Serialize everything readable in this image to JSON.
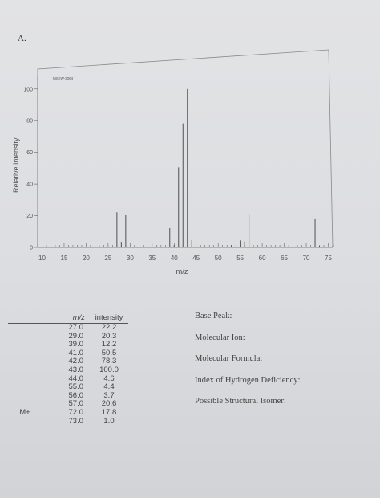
{
  "problem_label": "A.",
  "chart_data": {
    "type": "bar",
    "spectrum_id": "MS-IW-3064",
    "xlabel": "m/z",
    "ylabel": "Relative Intensity",
    "xlim": [
      9,
      76
    ],
    "ylim": [
      0,
      108
    ],
    "xticks": [
      10,
      15,
      20,
      25,
      30,
      35,
      40,
      45,
      50,
      55,
      60,
      65,
      70,
      75
    ],
    "yticks": [
      0,
      20,
      40,
      60,
      80,
      100
    ],
    "peaks": [
      {
        "mz": 27,
        "intensity": 22.2
      },
      {
        "mz": 28,
        "intensity": 3.5
      },
      {
        "mz": 29,
        "intensity": 20.3
      },
      {
        "mz": 39,
        "intensity": 12.2
      },
      {
        "mz": 40,
        "intensity": 1.5
      },
      {
        "mz": 41,
        "intensity": 50.5
      },
      {
        "mz": 42,
        "intensity": 78.3
      },
      {
        "mz": 43,
        "intensity": 100.0
      },
      {
        "mz": 44,
        "intensity": 4.6
      },
      {
        "mz": 53,
        "intensity": 1.5
      },
      {
        "mz": 55,
        "intensity": 4.4
      },
      {
        "mz": 56,
        "intensity": 3.7
      },
      {
        "mz": 57,
        "intensity": 20.6
      },
      {
        "mz": 72,
        "intensity": 17.8
      },
      {
        "mz": 73,
        "intensity": 1.0
      }
    ]
  },
  "table": {
    "header_mz": "m/z",
    "header_intensity": "intensity",
    "rows": [
      {
        "tag": "",
        "mz": "27.0",
        "intensity": "22.2"
      },
      {
        "tag": "",
        "mz": "29.0",
        "intensity": "20.3"
      },
      {
        "tag": "",
        "mz": "39.0",
        "intensity": "12.2"
      },
      {
        "tag": "",
        "mz": "41.0",
        "intensity": "50.5"
      },
      {
        "tag": "",
        "mz": "42.0",
        "intensity": "78.3"
      },
      {
        "tag": "",
        "mz": "43.0",
        "intensity": "100.0"
      },
      {
        "tag": "",
        "mz": "44.0",
        "intensity": "4.6"
      },
      {
        "tag": "",
        "mz": "55.0",
        "intensity": "4.4"
      },
      {
        "tag": "",
        "mz": "56.0",
        "intensity": "3.7"
      },
      {
        "tag": "",
        "mz": "57.0",
        "intensity": "20.6"
      },
      {
        "tag": "M+",
        "mz": "72.0",
        "intensity": "17.8"
      },
      {
        "tag": "",
        "mz": "73.0",
        "intensity": "1.0"
      }
    ]
  },
  "questions": {
    "base_peak": "Base Peak:",
    "molecular_ion": "Molecular Ion:",
    "molecular_formula": "Molecular Formula:",
    "ihd": "Index of Hydrogen Deficiency:",
    "structural_isomer": "Possible Structural Isomer:"
  }
}
